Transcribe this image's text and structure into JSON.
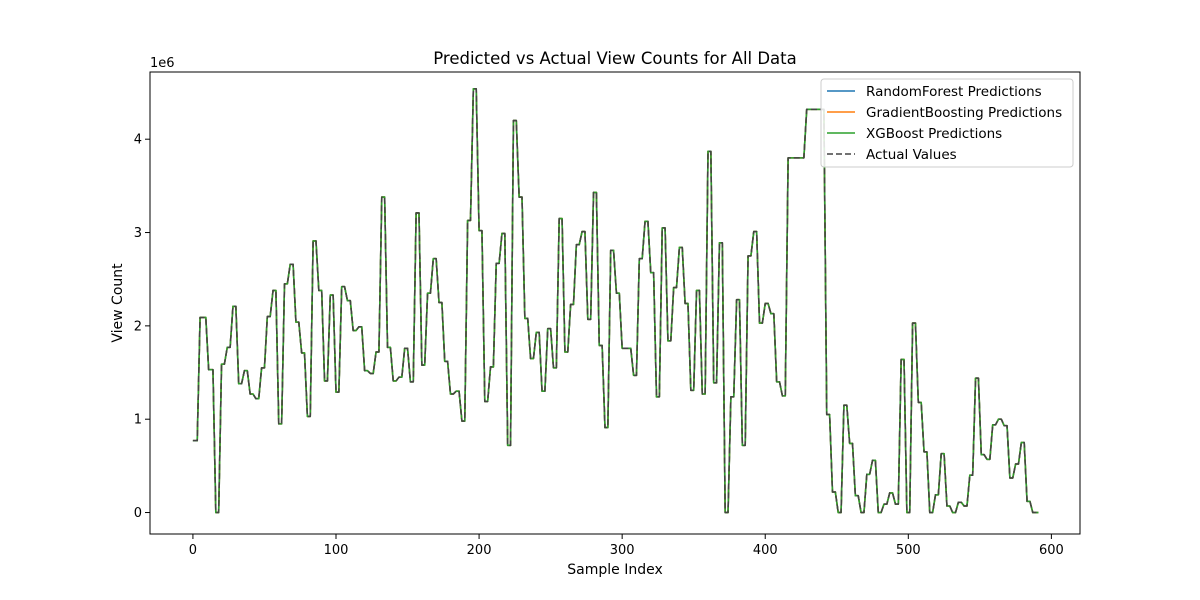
{
  "chart_data": {
    "type": "line",
    "title": "Predicted vs Actual View Counts for All Data",
    "xlabel": "Sample Index",
    "ylabel": "View Count",
    "y_offset_label": "1e6",
    "xlim": [
      -30,
      620
    ],
    "ylim": [
      -0.23,
      4.72
    ],
    "xticks": [
      0,
      100,
      200,
      300,
      400,
      500,
      600
    ],
    "xtick_labels": [
      "0",
      "100",
      "200",
      "300",
      "400",
      "500",
      "600"
    ],
    "yticks": [
      0,
      1,
      2,
      3,
      4
    ],
    "ytick_labels": [
      "0",
      "1",
      "2",
      "3",
      "4"
    ],
    "grid": false,
    "legend_position": "top-right",
    "series": [
      {
        "name": "RandomForest Predictions",
        "color": "#1f77b4",
        "style": "solid"
      },
      {
        "name": "GradientBoosting Predictions",
        "color": "#ff7f0e",
        "style": "solid"
      },
      {
        "name": "XGBoost Predictions",
        "color": "#2ca02c",
        "style": "solid"
      },
      {
        "name": "Actual Values",
        "color": "#444444",
        "style": "dashed"
      }
    ],
    "note_values": "All four series overlap; values are in units of 1e6 views, read per sample index.",
    "points": [
      [
        0,
        0.77
      ],
      [
        3,
        0.77
      ],
      [
        5,
        2.09
      ],
      [
        9,
        2.09
      ],
      [
        11,
        1.53
      ],
      [
        14,
        1.53
      ],
      [
        16,
        0.0
      ],
      [
        18,
        0.0
      ],
      [
        20,
        1.59
      ],
      [
        22,
        1.59
      ],
      [
        24,
        1.77
      ],
      [
        26,
        1.77
      ],
      [
        28,
        2.21
      ],
      [
        30,
        2.21
      ],
      [
        32,
        1.38
      ],
      [
        34,
        1.38
      ],
      [
        36,
        1.52
      ],
      [
        38,
        1.52
      ],
      [
        40,
        1.27
      ],
      [
        42,
        1.27
      ],
      [
        44,
        1.22
      ],
      [
        46,
        1.22
      ],
      [
        48,
        1.55
      ],
      [
        50,
        1.55
      ],
      [
        52,
        2.1
      ],
      [
        54,
        2.1
      ],
      [
        56,
        2.38
      ],
      [
        58,
        2.38
      ],
      [
        60,
        0.95
      ],
      [
        62,
        0.95
      ],
      [
        64,
        2.45
      ],
      [
        66,
        2.45
      ],
      [
        68,
        2.66
      ],
      [
        70,
        2.66
      ],
      [
        72,
        2.04
      ],
      [
        74,
        2.04
      ],
      [
        76,
        1.71
      ],
      [
        78,
        1.71
      ],
      [
        80,
        1.03
      ],
      [
        82,
        1.03
      ],
      [
        84,
        2.91
      ],
      [
        86,
        2.91
      ],
      [
        88,
        2.38
      ],
      [
        90,
        2.38
      ],
      [
        92,
        1.41
      ],
      [
        94,
        1.41
      ],
      [
        96,
        2.33
      ],
      [
        98,
        2.33
      ],
      [
        100,
        1.29
      ],
      [
        102,
        1.29
      ],
      [
        104,
        2.42
      ],
      [
        106,
        2.42
      ],
      [
        108,
        2.27
      ],
      [
        110,
        2.27
      ],
      [
        112,
        1.95
      ],
      [
        114,
        1.95
      ],
      [
        116,
        1.99
      ],
      [
        118,
        1.99
      ],
      [
        120,
        1.52
      ],
      [
        122,
        1.52
      ],
      [
        124,
        1.49
      ],
      [
        126,
        1.49
      ],
      [
        128,
        1.72
      ],
      [
        130,
        1.72
      ],
      [
        132,
        3.38
      ],
      [
        134,
        3.38
      ],
      [
        136,
        1.77
      ],
      [
        138,
        1.77
      ],
      [
        140,
        1.41
      ],
      [
        142,
        1.41
      ],
      [
        144,
        1.45
      ],
      [
        146,
        1.45
      ],
      [
        148,
        1.76
      ],
      [
        150,
        1.76
      ],
      [
        152,
        1.4
      ],
      [
        154,
        1.4
      ],
      [
        156,
        3.21
      ],
      [
        158,
        3.21
      ],
      [
        160,
        1.58
      ],
      [
        162,
        1.58
      ],
      [
        164,
        2.35
      ],
      [
        166,
        2.35
      ],
      [
        168,
        2.72
      ],
      [
        170,
        2.72
      ],
      [
        172,
        2.25
      ],
      [
        174,
        2.25
      ],
      [
        176,
        1.62
      ],
      [
        178,
        1.62
      ],
      [
        180,
        1.27
      ],
      [
        182,
        1.27
      ],
      [
        184,
        1.3
      ],
      [
        186,
        1.3
      ],
      [
        188,
        0.98
      ],
      [
        190,
        0.98
      ],
      [
        192,
        3.13
      ],
      [
        194,
        3.13
      ],
      [
        196,
        4.54
      ],
      [
        198,
        4.54
      ],
      [
        200,
        3.02
      ],
      [
        202,
        3.02
      ],
      [
        204,
        1.19
      ],
      [
        206,
        1.19
      ],
      [
        208,
        1.56
      ],
      [
        210,
        1.56
      ],
      [
        212,
        2.67
      ],
      [
        214,
        2.67
      ],
      [
        216,
        2.99
      ],
      [
        218,
        2.99
      ],
      [
        220,
        0.72
      ],
      [
        222,
        0.72
      ],
      [
        224,
        4.2
      ],
      [
        226,
        4.2
      ],
      [
        228,
        3.38
      ],
      [
        230,
        3.38
      ],
      [
        232,
        2.08
      ],
      [
        234,
        2.08
      ],
      [
        236,
        1.65
      ],
      [
        238,
        1.65
      ],
      [
        240,
        1.93
      ],
      [
        242,
        1.93
      ],
      [
        244,
        1.3
      ],
      [
        246,
        1.3
      ],
      [
        248,
        1.97
      ],
      [
        250,
        1.97
      ],
      [
        252,
        1.55
      ],
      [
        254,
        1.55
      ],
      [
        256,
        3.15
      ],
      [
        258,
        3.15
      ],
      [
        260,
        1.72
      ],
      [
        262,
        1.72
      ],
      [
        264,
        2.23
      ],
      [
        266,
        2.23
      ],
      [
        268,
        2.87
      ],
      [
        270,
        2.87
      ],
      [
        272,
        3.01
      ],
      [
        274,
        3.01
      ],
      [
        276,
        2.07
      ],
      [
        278,
        2.07
      ],
      [
        280,
        3.43
      ],
      [
        282,
        3.43
      ],
      [
        284,
        1.79
      ],
      [
        286,
        1.79
      ],
      [
        288,
        0.91
      ],
      [
        290,
        0.91
      ],
      [
        292,
        2.81
      ],
      [
        294,
        2.81
      ],
      [
        296,
        2.35
      ],
      [
        298,
        2.35
      ],
      [
        300,
        1.76
      ],
      [
        302,
        1.76
      ],
      [
        304,
        1.76
      ],
      [
        306,
        1.76
      ],
      [
        308,
        1.47
      ],
      [
        310,
        1.47
      ],
      [
        312,
        2.72
      ],
      [
        314,
        2.72
      ],
      [
        316,
        3.12
      ],
      [
        318,
        3.12
      ],
      [
        320,
        2.57
      ],
      [
        322,
        2.57
      ],
      [
        324,
        1.24
      ],
      [
        326,
        1.24
      ],
      [
        328,
        3.05
      ],
      [
        330,
        3.05
      ],
      [
        332,
        1.84
      ],
      [
        334,
        1.84
      ],
      [
        336,
        2.41
      ],
      [
        338,
        2.41
      ],
      [
        340,
        2.84
      ],
      [
        342,
        2.84
      ],
      [
        344,
        2.24
      ],
      [
        346,
        2.24
      ],
      [
        348,
        1.31
      ],
      [
        350,
        1.31
      ],
      [
        352,
        2.38
      ],
      [
        354,
        2.38
      ],
      [
        356,
        1.27
      ],
      [
        358,
        1.27
      ],
      [
        360,
        3.87
      ],
      [
        362,
        3.87
      ],
      [
        364,
        1.39
      ],
      [
        366,
        1.39
      ],
      [
        368,
        2.89
      ],
      [
        370,
        2.89
      ],
      [
        372,
        0.0
      ],
      [
        374,
        0.0
      ],
      [
        376,
        1.24
      ],
      [
        378,
        1.24
      ],
      [
        380,
        2.28
      ],
      [
        382,
        2.28
      ],
      [
        384,
        0.72
      ],
      [
        386,
        0.72
      ],
      [
        388,
        2.75
      ],
      [
        390,
        2.75
      ],
      [
        392,
        3.01
      ],
      [
        394,
        3.01
      ],
      [
        396,
        2.03
      ],
      [
        398,
        2.03
      ],
      [
        400,
        2.24
      ],
      [
        402,
        2.24
      ],
      [
        404,
        2.13
      ],
      [
        406,
        2.13
      ],
      [
        408,
        1.4
      ],
      [
        410,
        1.4
      ],
      [
        412,
        1.25
      ],
      [
        414,
        1.25
      ],
      [
        416,
        3.8
      ],
      [
        427,
        3.8
      ],
      [
        429,
        4.32
      ],
      [
        441,
        4.32
      ],
      [
        443,
        1.05
      ],
      [
        445,
        1.05
      ],
      [
        447,
        0.22
      ],
      [
        449,
        0.22
      ],
      [
        451,
        0.0
      ],
      [
        453,
        0.0
      ],
      [
        455,
        1.15
      ],
      [
        457,
        1.15
      ],
      [
        459,
        0.74
      ],
      [
        461,
        0.74
      ],
      [
        463,
        0.18
      ],
      [
        465,
        0.18
      ],
      [
        467,
        0.0
      ],
      [
        469,
        0.0
      ],
      [
        471,
        0.41
      ],
      [
        473,
        0.41
      ],
      [
        475,
        0.56
      ],
      [
        477,
        0.56
      ],
      [
        479,
        0.0
      ],
      [
        481,
        0.0
      ],
      [
        483,
        0.09
      ],
      [
        485,
        0.09
      ],
      [
        487,
        0.21
      ],
      [
        489,
        0.21
      ],
      [
        491,
        0.09
      ],
      [
        493,
        0.09
      ],
      [
        495,
        1.64
      ],
      [
        497,
        1.64
      ],
      [
        499,
        0.0
      ],
      [
        501,
        0.0
      ],
      [
        503,
        2.03
      ],
      [
        505,
        2.03
      ],
      [
        507,
        1.18
      ],
      [
        509,
        1.18
      ],
      [
        511,
        0.65
      ],
      [
        513,
        0.65
      ],
      [
        515,
        0.0
      ],
      [
        517,
        0.0
      ],
      [
        519,
        0.19
      ],
      [
        521,
        0.19
      ],
      [
        523,
        0.63
      ],
      [
        525,
        0.63
      ],
      [
        527,
        0.07
      ],
      [
        529,
        0.07
      ],
      [
        531,
        0.0
      ],
      [
        533,
        0.0
      ],
      [
        535,
        0.11
      ],
      [
        537,
        0.11
      ],
      [
        539,
        0.07
      ],
      [
        541,
        0.07
      ],
      [
        543,
        0.4
      ],
      [
        545,
        0.4
      ],
      [
        547,
        1.44
      ],
      [
        549,
        1.44
      ],
      [
        551,
        0.62
      ],
      [
        553,
        0.62
      ],
      [
        555,
        0.57
      ],
      [
        557,
        0.57
      ],
      [
        559,
        0.94
      ],
      [
        561,
        0.94
      ],
      [
        563,
        1.0
      ],
      [
        565,
        1.0
      ],
      [
        567,
        0.93
      ],
      [
        569,
        0.93
      ],
      [
        571,
        0.37
      ],
      [
        573,
        0.37
      ],
      [
        575,
        0.52
      ],
      [
        577,
        0.52
      ],
      [
        579,
        0.75
      ],
      [
        581,
        0.75
      ],
      [
        583,
        0.12
      ],
      [
        585,
        0.12
      ],
      [
        587,
        0.0
      ],
      [
        591,
        0.0
      ]
    ]
  }
}
